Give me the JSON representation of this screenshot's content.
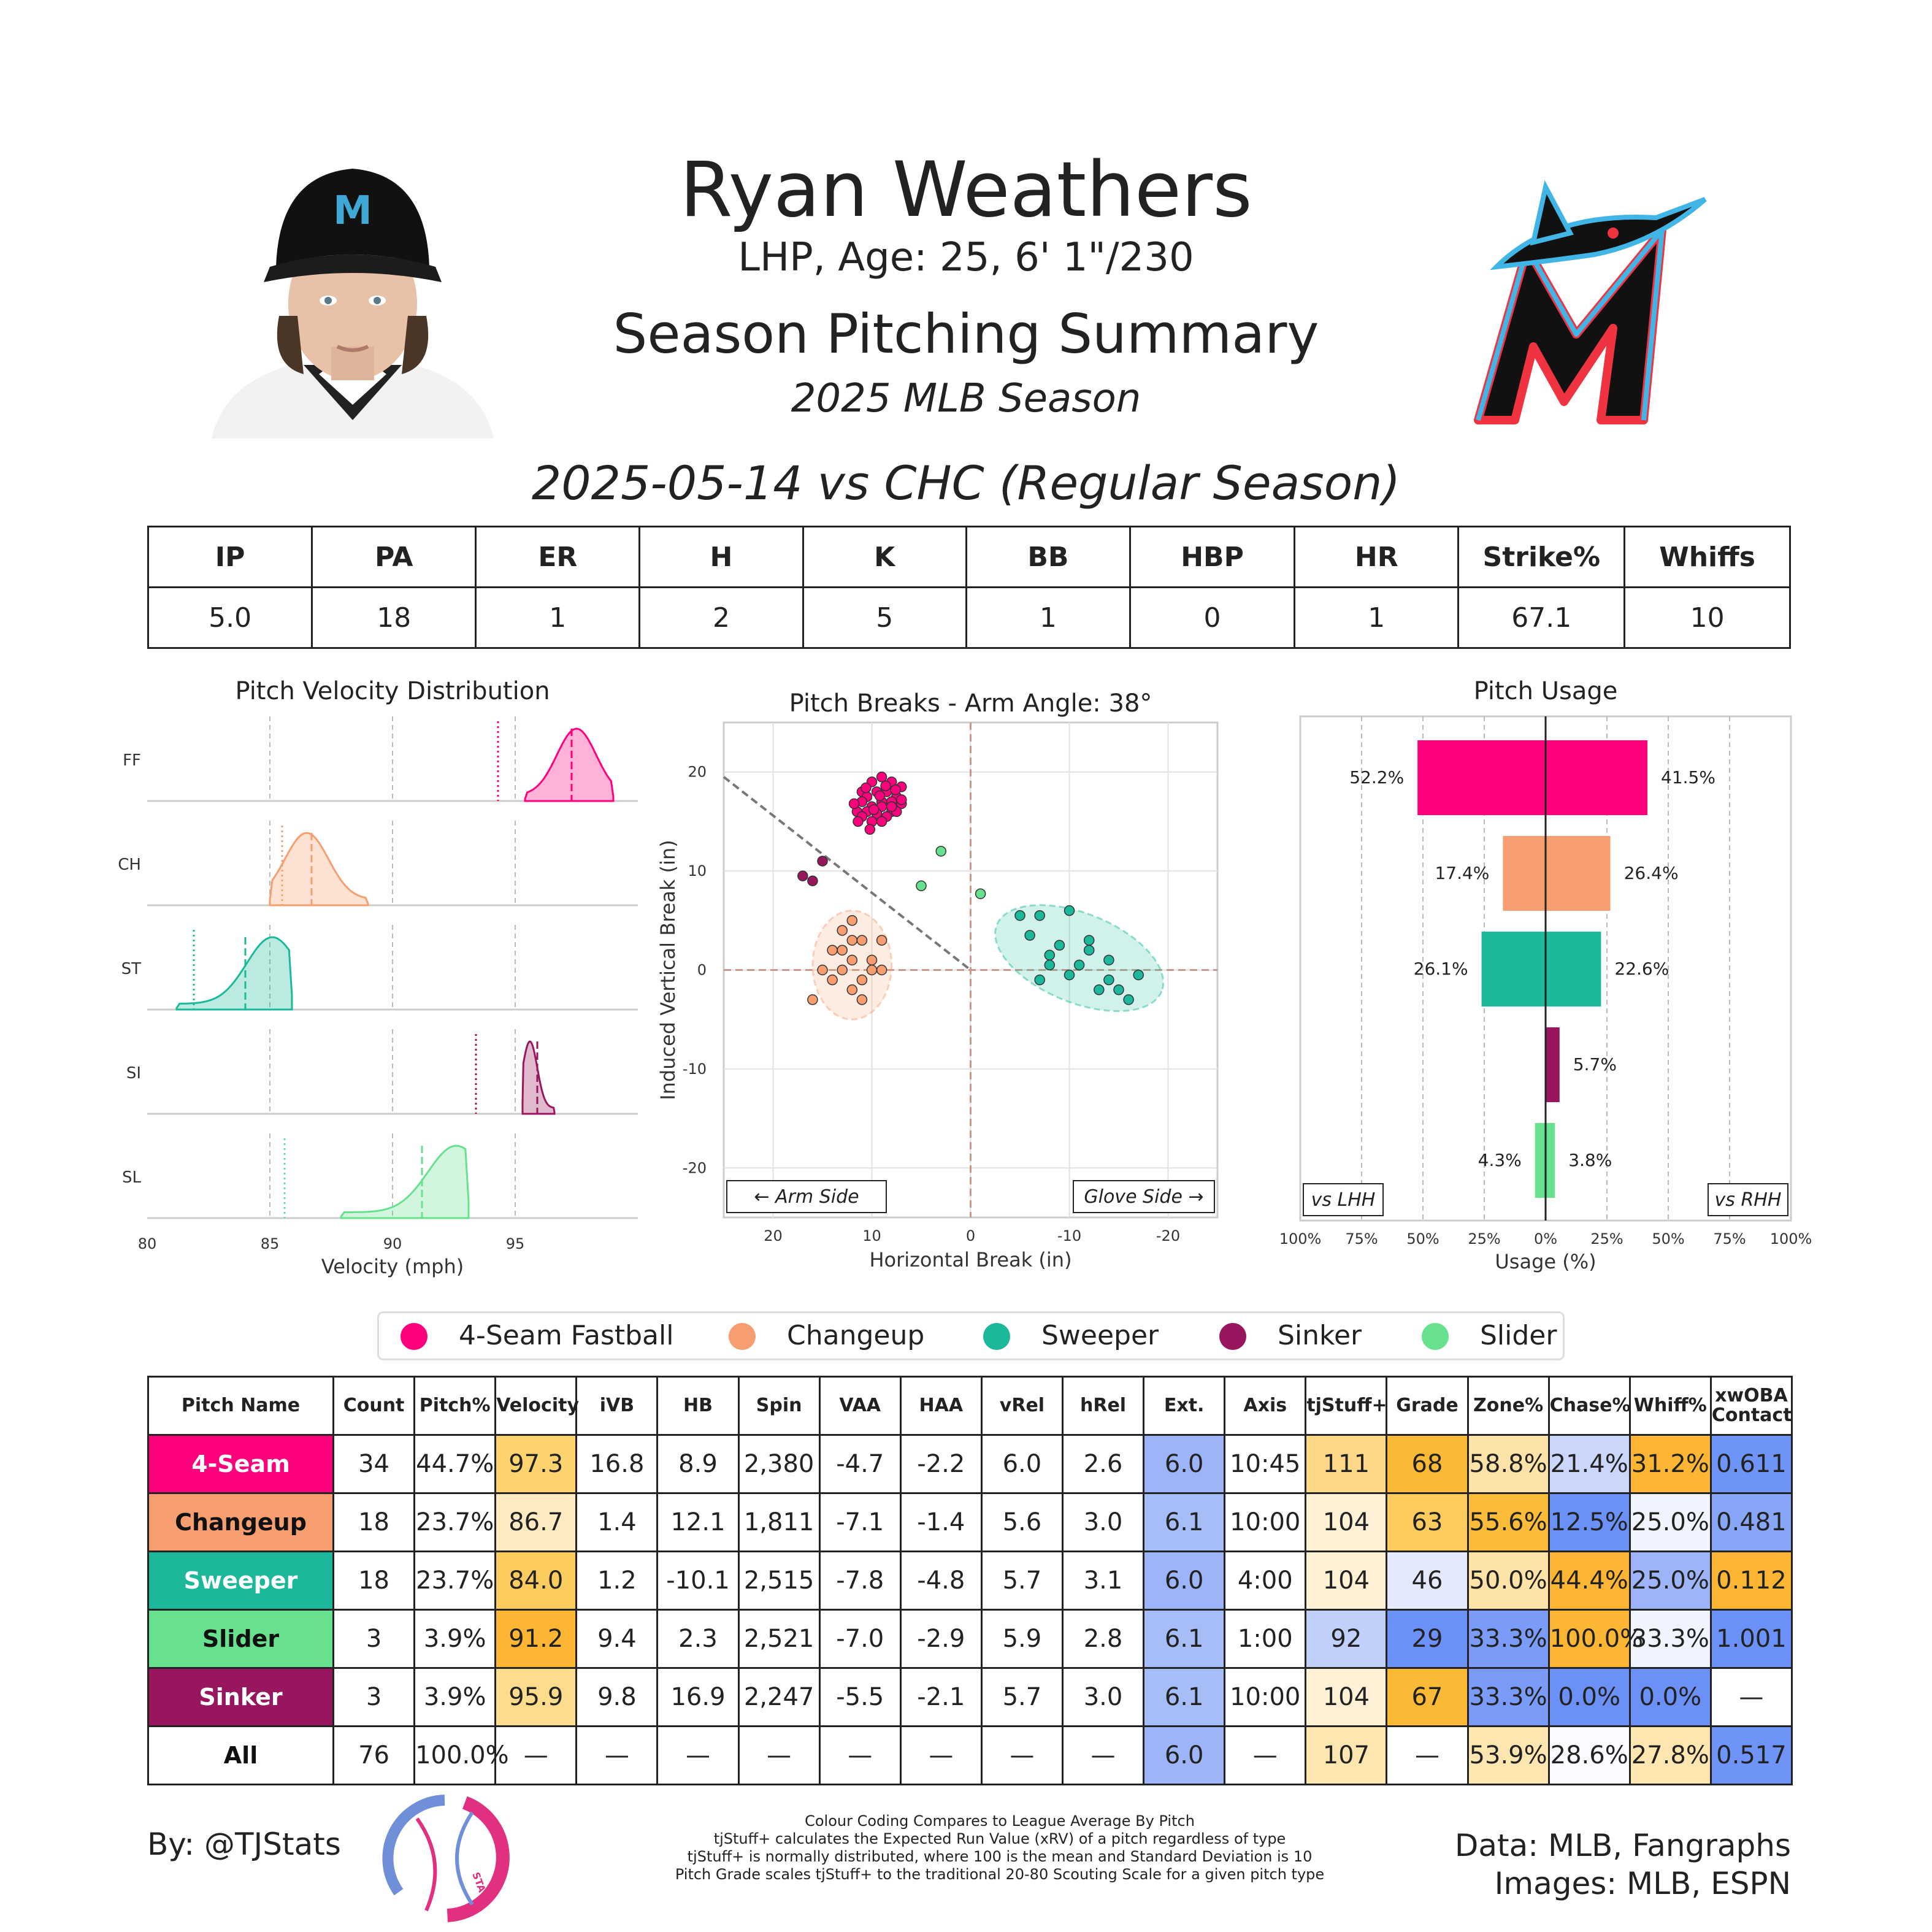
{
  "header": {
    "player_name": "Ryan Weathers",
    "player_info": "LHP, Age: 25, 6' 1\"/230",
    "summary_title": "Season Pitching Summary",
    "season": "2025 MLB Season",
    "game_title": "2025-05-14 vs CHC (Regular Season)"
  },
  "game_stats": {
    "headers": [
      "IP",
      "PA",
      "ER",
      "H",
      "K",
      "BB",
      "HBP",
      "HR",
      "Strike%",
      "Whiffs"
    ],
    "values": [
      "5.0",
      "18",
      "1",
      "2",
      "5",
      "1",
      "0",
      "1",
      "67.1",
      "10"
    ]
  },
  "colors": {
    "FF": "#FF007D",
    "CH": "#F79E70",
    "ST": "#1BB999",
    "SI": "#98165D",
    "SL": "#67E18D"
  },
  "chart_data": [
    {
      "type": "area",
      "title": "Pitch Velocity Distribution",
      "xlabel": "Velocity (mph)",
      "xlim": [
        80,
        100
      ],
      "xticks": [
        80,
        85,
        90,
        95
      ],
      "series": [
        {
          "name": "FF",
          "range": [
            95.4,
            99.0
          ],
          "mean": 97.3,
          "league": 94.3,
          "peak": 97.5
        },
        {
          "name": "CH",
          "range": [
            85.0,
            89.0
          ],
          "mean": 86.7,
          "league": 85.5,
          "peak": 86.5
        },
        {
          "name": "ST",
          "range": [
            81.2,
            85.9
          ],
          "mean": 84.0,
          "league": 81.9,
          "peak": 85.1
        },
        {
          "name": "SI",
          "range": [
            95.3,
            96.6
          ],
          "mean": 95.9,
          "league": 93.4,
          "peak": 95.6
        },
        {
          "name": "SL",
          "range": [
            87.9,
            93.1
          ],
          "mean": 91.2,
          "league": 85.6,
          "peak": 92.6
        }
      ]
    },
    {
      "type": "scatter",
      "title": "Pitch Breaks - Arm Angle: 38°",
      "xlabel": "Horizontal Break (in)",
      "ylabel": "Induced Vertical Break (in)",
      "xlim": [
        25,
        -25
      ],
      "ylim": [
        -25,
        25
      ],
      "xticks": [
        20,
        10,
        0,
        -10,
        -20
      ],
      "yticks": [
        20,
        10,
        0,
        -10,
        -20
      ],
      "annotations": [
        "← Arm Side",
        "Glove Side →"
      ],
      "points": {
        "FF": [
          [
            10,
            19
          ],
          [
            9,
            19.5
          ],
          [
            8,
            19
          ],
          [
            7,
            18.5
          ],
          [
            11,
            18
          ],
          [
            9.5,
            18
          ],
          [
            8.5,
            18
          ],
          [
            7.5,
            17.5
          ],
          [
            10.5,
            17.5
          ],
          [
            9,
            17
          ],
          [
            8,
            17
          ],
          [
            7,
            16.8
          ],
          [
            11,
            17
          ],
          [
            10,
            16.5
          ],
          [
            9,
            16.5
          ],
          [
            8,
            16
          ],
          [
            11.5,
            16
          ],
          [
            10.5,
            16
          ],
          [
            9.5,
            15.8
          ],
          [
            8.5,
            15.5
          ],
          [
            7.5,
            16
          ],
          [
            11,
            15.5
          ],
          [
            10,
            15
          ],
          [
            9,
            15
          ],
          [
            8,
            16.5
          ],
          [
            7,
            17.2
          ],
          [
            11.8,
            16.8
          ],
          [
            10.2,
            14.2
          ],
          [
            9.2,
            17.6
          ],
          [
            8.6,
            18.6
          ],
          [
            7.6,
            18.2
          ],
          [
            10.6,
            18.4
          ],
          [
            11.4,
            15
          ],
          [
            9.8,
            16.2
          ]
        ],
        "CH": [
          [
            16,
            -3
          ],
          [
            15,
            0
          ],
          [
            14,
            2
          ],
          [
            13,
            4
          ],
          [
            12,
            5
          ],
          [
            11,
            3
          ],
          [
            10,
            1
          ],
          [
            9,
            3
          ],
          [
            12,
            1
          ],
          [
            13,
            0
          ],
          [
            11,
            -1
          ],
          [
            10,
            0
          ],
          [
            14,
            -1
          ],
          [
            12,
            -2
          ],
          [
            11,
            -3
          ],
          [
            9,
            0
          ],
          [
            13,
            2
          ],
          [
            12,
            3
          ]
        ],
        "ST": [
          [
            -5,
            5.5
          ],
          [
            -7,
            5.5
          ],
          [
            -6,
            3.5
          ],
          [
            -9,
            2.5
          ],
          [
            -10,
            6
          ],
          [
            -8,
            1.5
          ],
          [
            -11,
            0.5
          ],
          [
            -12,
            3
          ],
          [
            -14,
            -1
          ],
          [
            -15,
            -2
          ],
          [
            -16,
            -3
          ],
          [
            -13,
            -2
          ],
          [
            -10,
            -0.5
          ],
          [
            -8,
            0.5
          ],
          [
            -7,
            -1
          ],
          [
            -12,
            2
          ],
          [
            -14,
            1
          ],
          [
            -17,
            -0.5
          ]
        ],
        "SI": [
          [
            15,
            11
          ],
          [
            16,
            9
          ],
          [
            17,
            9.5
          ]
        ],
        "SL": [
          [
            3,
            12
          ],
          [
            5,
            8.5
          ],
          [
            -1,
            7.7
          ]
        ]
      },
      "ellipses": [
        {
          "name": "CH",
          "cx": 12,
          "cy": 0.5,
          "rx": 4,
          "ry": 5.5
        },
        {
          "name": "ST",
          "cx": -11,
          "cy": 1.2,
          "rx": 9,
          "ry": 4.5
        }
      ]
    },
    {
      "type": "bar",
      "title": "Pitch Usage",
      "xlabel": "Usage (%)",
      "xticks": [
        "100%",
        "75%",
        "50%",
        "25%",
        "0%",
        "25%",
        "50%",
        "75%",
        "100%"
      ],
      "corner_labels": [
        "vs LHH",
        "vs RHH"
      ],
      "categories": [
        "FF",
        "CH",
        "ST",
        "SI",
        "SL"
      ],
      "series": [
        {
          "name": "vs LHH",
          "values": [
            52.2,
            17.4,
            26.1,
            0.0,
            4.3
          ],
          "labels": [
            "52.2%",
            "17.4%",
            "26.1%",
            "",
            "4.3%"
          ]
        },
        {
          "name": "vs RHH",
          "values": [
            41.5,
            26.4,
            22.6,
            5.7,
            3.8
          ],
          "labels": [
            "41.5%",
            "26.4%",
            "22.6%",
            "5.7%",
            "3.8%"
          ]
        }
      ]
    }
  ],
  "legend": [
    {
      "key": "FF",
      "label": "4-Seam Fastball"
    },
    {
      "key": "CH",
      "label": "Changeup"
    },
    {
      "key": "ST",
      "label": "Sweeper"
    },
    {
      "key": "SI",
      "label": "Sinker"
    },
    {
      "key": "SL",
      "label": "Slider"
    }
  ],
  "pitch_table": {
    "headers": [
      "Pitch Name",
      "Count",
      "Pitch%",
      "Velocity",
      "iVB",
      "HB",
      "Spin",
      "VAA",
      "HAA",
      "vRel",
      "hRel",
      "Ext.",
      "Axis",
      "tjStuff+",
      "Grade",
      "Zone%",
      "Chase%",
      "Whiff%",
      "xwOBA\nContact"
    ],
    "rows": [
      {
        "name": "4-Seam",
        "key": "FF",
        "text_color": "#ffffff",
        "cells": [
          "34",
          "44.7%",
          "97.3",
          "16.8",
          "8.9",
          "2,380",
          "-4.7",
          "-2.2",
          "6.0",
          "2.6",
          "6.0",
          "10:45",
          "111",
          "68",
          "58.8%",
          "21.4%",
          "31.2%",
          "0.611"
        ],
        "bg": [
          "",
          "",
          "#FDD36F",
          "",
          "",
          "",
          "",
          "",
          "",
          "",
          "#9DB5F8",
          "",
          "#FED889",
          "#FBBA36",
          "#FEE3A8",
          "#CBD7FA",
          "#FCB633",
          "#6F94F8"
        ]
      },
      {
        "name": "Changeup",
        "key": "CH",
        "text_color": "#111111",
        "cells": [
          "18",
          "23.7%",
          "86.7",
          "1.4",
          "12.1",
          "1,811",
          "-7.1",
          "-1.4",
          "5.6",
          "3.0",
          "6.1",
          "10:00",
          "104",
          "63",
          "55.6%",
          "12.5%",
          "25.0%",
          "0.481"
        ],
        "bg": [
          "",
          "",
          "#FEEBC2",
          "",
          "",
          "",
          "",
          "",
          "",
          "",
          "#A7BDF8",
          "",
          "#FEF1D6",
          "#FDCC5F",
          "#FBBC3A",
          "#6B91F8",
          "#F1F4FE",
          "#87A6F8"
        ]
      },
      {
        "name": "Sweeper",
        "key": "ST",
        "text_color": "#ffffff",
        "cells": [
          "18",
          "23.7%",
          "84.0",
          "1.2",
          "-10.1",
          "2,515",
          "-7.8",
          "-4.8",
          "5.7",
          "3.1",
          "6.0",
          "4:00",
          "104",
          "46",
          "50.0%",
          "44.4%",
          "25.0%",
          "0.112"
        ],
        "bg": [
          "",
          "",
          "#FDCC5E",
          "",
          "",
          "",
          "",
          "",
          "",
          "",
          "#9DB5F8",
          "",
          "#FEF1D6",
          "#E4EAFC",
          "#FEE3A8",
          "#FCB633",
          "#9DB5F8",
          "#FCB633"
        ]
      },
      {
        "name": "Slider",
        "key": "SL",
        "text_color": "#111111",
        "cells": [
          "3",
          "3.9%",
          "91.2",
          "9.4",
          "2.3",
          "2,521",
          "-7.0",
          "-2.9",
          "5.9",
          "2.8",
          "6.1",
          "1:00",
          "92",
          "29",
          "33.3%",
          "100.0%",
          "33.3%",
          "1.001"
        ],
        "bg": [
          "",
          "",
          "#FCB633",
          "",
          "",
          "",
          "",
          "",
          "",
          "",
          "#A7BDF8",
          "",
          "#C1D0FA",
          "#6B91F8",
          "#7A9CF8",
          "#FCB633",
          "#F1F4FE",
          "#6B91F8"
        ]
      },
      {
        "name": "Sinker",
        "key": "SI",
        "text_color": "#ffffff",
        "cells": [
          "3",
          "3.9%",
          "95.9",
          "9.8",
          "16.9",
          "2,247",
          "-5.5",
          "-2.1",
          "5.7",
          "3.0",
          "6.1",
          "10:00",
          "104",
          "67",
          "33.3%",
          "0.0%",
          "0.0%",
          "—"
        ],
        "bg": [
          "",
          "",
          "#FEDC8E",
          "",
          "",
          "",
          "",
          "",
          "",
          "",
          "#A7BDF8",
          "",
          "#FEF1D6",
          "#FBBA36",
          "#7A9CF8",
          "#6B91F8",
          "#6B91F8",
          ""
        ]
      },
      {
        "name": "All",
        "key": "",
        "text_color": "#111111",
        "cells": [
          "76",
          "100.0%",
          "—",
          "—",
          "—",
          "—",
          "—",
          "—",
          "—",
          "—",
          "6.0",
          "—",
          "107",
          "—",
          "53.9%",
          "28.6%",
          "27.8%",
          "0.517"
        ],
        "bg": [
          "",
          "",
          "",
          "",
          "",
          "",
          "",
          "",
          "",
          "",
          "#9DB5F8",
          "",
          "#FEE6B0",
          "",
          "#FEE6B0",
          "#FBFCFF",
          "#FEE6B0",
          "#6F94F8"
        ]
      }
    ]
  },
  "footer": {
    "credit": "By: @TJStats",
    "data_source": "Data: MLB, Fangraphs",
    "images_source": "Images: MLB, ESPN",
    "notes": [
      "Colour Coding Compares to League Average By Pitch",
      "tjStuff+ calculates the Expected Run Value (xRV) of a pitch regardless of type",
      "tjStuff+ is normally distributed, where 100 is the mean and Standard Deviation is 10",
      "Pitch Grade scales tjStuff+ to the traditional 20-80 Scouting Scale for a given pitch type"
    ],
    "logo_text": "STATS"
  },
  "icons": {
    "headshot": "player-headshot-icon",
    "team_logo": "marlins-logo-icon",
    "stats_logo": "tjstats-logo-icon"
  }
}
